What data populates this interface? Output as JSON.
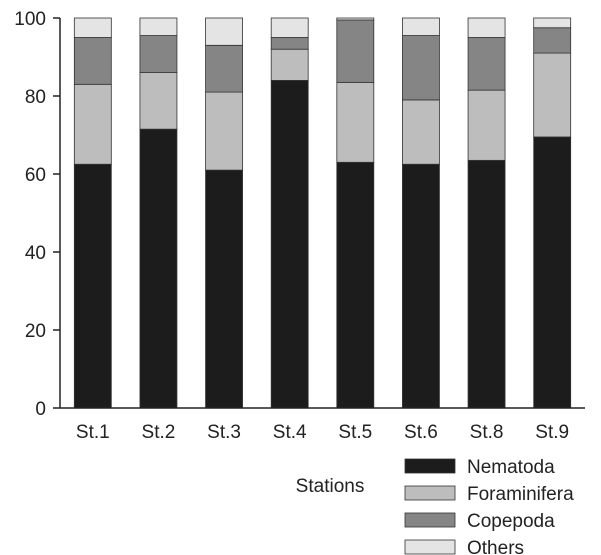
{
  "chart_data": {
    "type": "bar",
    "stacked": true,
    "percent": true,
    "title": "",
    "xlabel": "Stations",
    "ylabel": "",
    "ylim": [
      0,
      100
    ],
    "yticks": [
      0,
      20,
      40,
      60,
      80,
      100
    ],
    "grid": false,
    "legend_position": "bottom-right",
    "categories": [
      "St.1",
      "St.2",
      "St.3",
      "St.4",
      "St.5",
      "St.6",
      "St.8",
      "St.9"
    ],
    "series": [
      {
        "name": "Nematoda",
        "color": "#1c1c1c",
        "values": [
          62.5,
          71.5,
          61.0,
          84.0,
          63.0,
          62.5,
          63.5,
          69.5
        ]
      },
      {
        "name": "Foraminifera",
        "color": "#bdbdbd",
        "values": [
          20.5,
          14.5,
          20.0,
          8.0,
          20.5,
          16.5,
          18.0,
          21.5
        ]
      },
      {
        "name": "Copepoda",
        "color": "#858585",
        "values": [
          12.0,
          9.5,
          12.0,
          3.0,
          16.0,
          16.5,
          13.5,
          6.5
        ]
      },
      {
        "name": "Others",
        "color": "#e4e4e4",
        "values": [
          5.0,
          4.5,
          7.0,
          5.0,
          0.5,
          4.5,
          5.0,
          2.5
        ]
      }
    ]
  }
}
